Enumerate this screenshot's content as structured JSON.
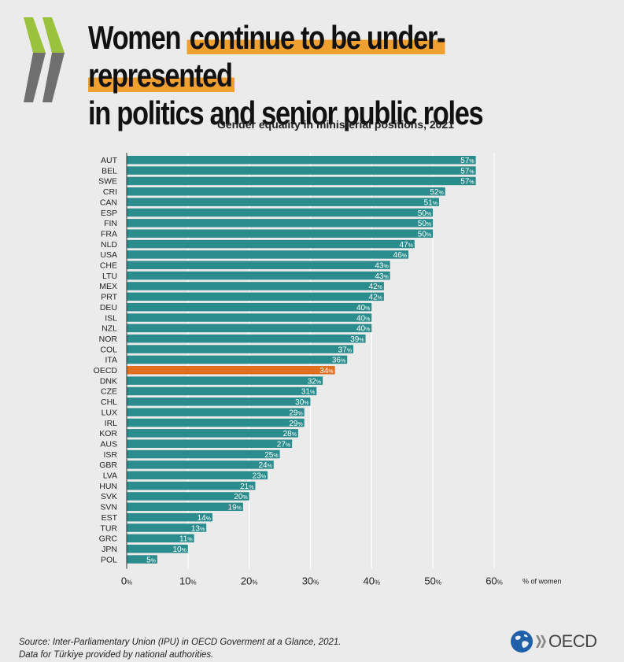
{
  "header": {
    "title_part1": "Women ",
    "title_highlight": "continue to be under-represented",
    "title_line2": "in politics and senior public roles",
    "subtitle": "Gender equality in ministerial positions, 2021"
  },
  "colors": {
    "bar": "#2a8c8c",
    "highlight_bar": "#e07020",
    "chevron_green": "#9bc23c",
    "chevron_grey": "#6f6f6f",
    "title_highlight": "#f0a030"
  },
  "chart_data": {
    "type": "bar",
    "orientation": "horizontal",
    "categories": [
      "AUT",
      "BEL",
      "SWE",
      "CRI",
      "CAN",
      "ESP",
      "FIN",
      "FRA",
      "NLD",
      "USA",
      "CHE",
      "LTU",
      "MEX",
      "PRT",
      "DEU",
      "ISL",
      "NZL",
      "NOR",
      "COL",
      "ITA",
      "OECD",
      "DNK",
      "CZE",
      "CHL",
      "LUX",
      "IRL",
      "KOR",
      "AUS",
      "ISR",
      "GBR",
      "LVA",
      "HUN",
      "SVK",
      "SVN",
      "EST",
      "TUR",
      "GRC",
      "JPN",
      "POL"
    ],
    "values": [
      57,
      57,
      57,
      52,
      51,
      50,
      50,
      50,
      47,
      46,
      43,
      43,
      42,
      42,
      40,
      40,
      40,
      39,
      37,
      36,
      34,
      32,
      31,
      30,
      29,
      29,
      28,
      27,
      25,
      24,
      23,
      21,
      20,
      19,
      14,
      13,
      11,
      10,
      5
    ],
    "highlight_category": "OECD",
    "value_unit": "%",
    "xlim": [
      0,
      60
    ],
    "xticks": [
      0,
      10,
      20,
      30,
      40,
      50,
      60
    ],
    "xlabel": "% of women",
    "grid": true
  },
  "footer": {
    "source_line1": "Source: Inter-Parliamentary Union (IPU) in OECD Goverment at a Glance, 2021.",
    "source_line2": "Data for Türkiye provided by national authorities.",
    "logo_text": "OECD"
  }
}
